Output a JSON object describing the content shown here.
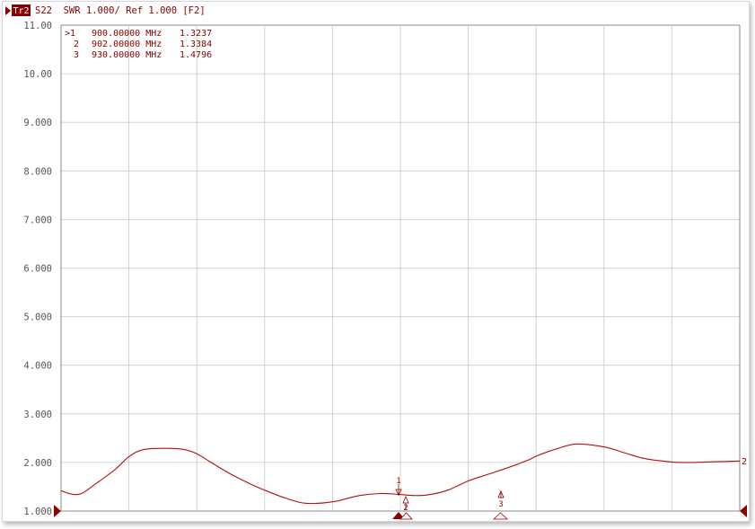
{
  "colors": {
    "trace": "#b20f0f",
    "text": "#8b0000",
    "grid": "#c9c9c9",
    "frame": "#8a8a8a"
  },
  "header": {
    "trace_badge": "Tr2",
    "description": "S22  SWR 1.000/ Ref 1.000 [F2]"
  },
  "markers": [
    {
      "label": ">1",
      "freq": "900.00000 MHz",
      "value": "1.3237"
    },
    {
      "label": "2",
      "freq": "902.00000 MHz",
      "value": "1.3384"
    },
    {
      "label": "3",
      "freq": "930.00000 MHz",
      "value": "1.4796"
    }
  ],
  "chart_data": {
    "type": "line",
    "title": "S22  SWR 1.000/ Ref 1.000 [F2]",
    "xlabel": "",
    "ylabel": "",
    "ylim": [
      1.0,
      11.0
    ],
    "y_ticks": [
      "1.000",
      "2.000",
      "3.000",
      "4.000",
      "5.000",
      "6.000",
      "7.000",
      "8.000",
      "9.000",
      "10.00",
      "11.00"
    ],
    "x_divisions": 10,
    "grid": true,
    "trace_end_label": "2",
    "marker_flags": [
      "1",
      "2",
      "3"
    ],
    "series": [
      {
        "x": [
          0,
          0.15,
          0.3,
          0.5,
          0.8,
          1.0,
          1.2,
          1.5,
          1.8,
          2.0,
          2.2,
          2.5,
          2.8,
          3.0,
          3.3,
          3.6,
          4.0,
          4.4,
          4.7,
          5.0,
          5.2,
          5.4,
          5.7,
          6.0,
          6.3,
          6.6,
          6.9,
          7.0,
          7.3,
          7.6,
          8.0,
          8.3,
          8.6,
          9.0,
          9.3,
          9.5,
          9.8,
          10.0
        ],
        "values": [
          1.42,
          1.35,
          1.36,
          1.55,
          1.86,
          2.12,
          2.26,
          2.29,
          2.27,
          2.18,
          2.01,
          1.76,
          1.55,
          1.43,
          1.27,
          1.16,
          1.19,
          1.32,
          1.36,
          1.34,
          1.32,
          1.33,
          1.43,
          1.62,
          1.76,
          1.9,
          2.06,
          2.13,
          2.28,
          2.38,
          2.32,
          2.2,
          2.08,
          2.01,
          2.0,
          2.01,
          2.02,
          2.03
        ]
      }
    ]
  }
}
